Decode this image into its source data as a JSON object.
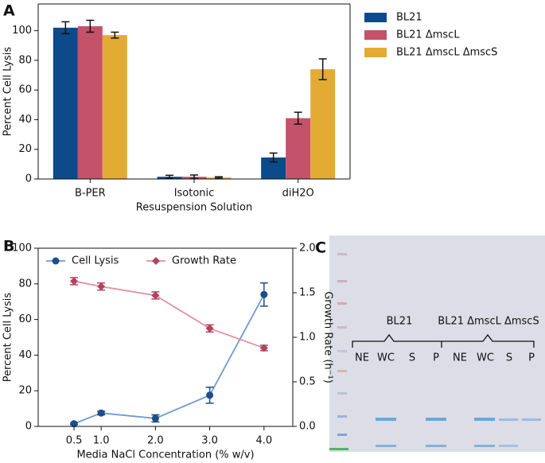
{
  "chart_data": [
    {
      "type": "bar",
      "panel_label": "A",
      "ylabel": "Percent Cell Lysis",
      "xlabel": "Resuspension Solution",
      "categories": [
        "B-PER",
        "Isotonic",
        "diH2O"
      ],
      "series": [
        {
          "name": "BL21",
          "color": "#0c4a8a",
          "values": [
            102,
            1.5,
            14.5
          ],
          "errors": [
            4,
            1,
            3
          ]
        },
        {
          "name": "BL21 ΔmscL",
          "color": "#c4526a",
          "values": [
            103,
            1.5,
            41
          ],
          "errors": [
            4,
            1.2,
            4
          ]
        },
        {
          "name": "BL21 ΔmscL ΔmscS",
          "color": "#e3ab34",
          "values": [
            97,
            1,
            74
          ],
          "errors": [
            2,
            0.5,
            7
          ]
        }
      ],
      "ylim": [
        0,
        118
      ],
      "yticks": [
        0,
        20,
        40,
        60,
        80,
        100
      ],
      "legend": "right"
    },
    {
      "type": "line",
      "panel_label": "B",
      "ylabel": "Percent Cell Lysis",
      "y2label": "Growth Rate (h⁻¹)",
      "xlabel": "Media NaCl Concentration (% w/v)",
      "x": [
        0.5,
        1,
        2,
        3,
        4
      ],
      "series": [
        {
          "name": "Cell Lysis",
          "color": "#6f9bd0",
          "marker_color": "#1d4e89",
          "marker": "circle",
          "values": [
            1.5,
            7.5,
            4.5,
            17.5,
            74
          ],
          "errors": [
            0.5,
            1,
            2,
            4.5,
            6.5
          ]
        },
        {
          "name": "Growth Rate",
          "color": "#e38fa0",
          "marker_color": "#b0435e",
          "marker": "diamond",
          "axis": "y2",
          "values": [
            1.63,
            1.57,
            1.47,
            1.1,
            0.88
          ],
          "errors": [
            0.04,
            0.04,
            0.04,
            0.04,
            0.03
          ]
        }
      ],
      "xlim": [
        -0.16,
        4.53
      ],
      "xticks": [
        0.5,
        {
          "value": 1,
          "label": "1.0"
        },
        {
          "value": 2,
          "label": "2.0"
        },
        {
          "value": 3,
          "label": "3.0"
        },
        {
          "value": 4,
          "label": "4.0"
        }
      ],
      "ylim": [
        0,
        100
      ],
      "yticks": [
        0,
        20,
        40,
        60,
        80,
        100
      ],
      "y2lim": [
        0,
        2
      ],
      "y2ticks": [
        {
          "value": 0,
          "label": "0.0"
        },
        0.5,
        {
          "value": 1,
          "label": "1.0"
        },
        1.5,
        {
          "value": 2,
          "label": "2.0"
        }
      ],
      "legend": "upper left"
    }
  ],
  "gel": {
    "panel_label": "C",
    "groups": [
      "BL21",
      "BL21 ΔmscL ΔmscS"
    ],
    "lanes": [
      "NE",
      "WC",
      "S",
      "P",
      "NE",
      "WC",
      "S",
      "P"
    ]
  }
}
